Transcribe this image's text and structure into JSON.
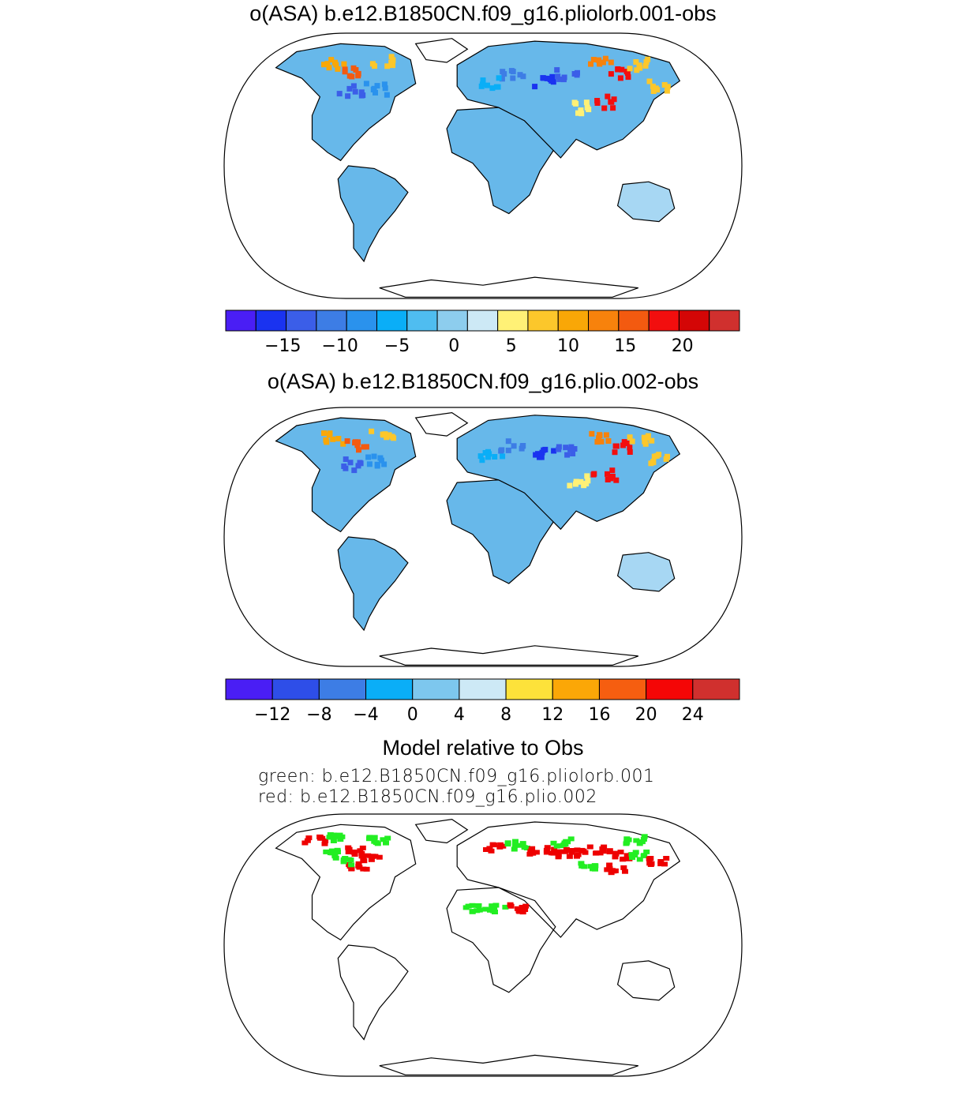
{
  "panels": [
    {
      "title": "o(ASA) b.e12.B1850CN.f09_g16.pliolorb.001-obs",
      "colorbar": {
        "colors": [
          "#4a1ef5",
          "#1a33f0",
          "#3b5ee8",
          "#3d7de5",
          "#2a92ed",
          "#0aaef7",
          "#4fbdf0",
          "#8dcdee",
          "#cde9f6",
          "#fff176",
          "#fcc72b",
          "#f9a707",
          "#f7820c",
          "#f35a10",
          "#f20e0e",
          "#d40606",
          "#d0302e"
        ],
        "tick_labels": [
          "−15",
          "−10",
          "−5",
          "0",
          "5",
          "10",
          "15",
          "20"
        ],
        "tick_values": [
          -15,
          -10,
          -5,
          0,
          5,
          10,
          15,
          20
        ],
        "range": [
          -20,
          25
        ]
      }
    },
    {
      "title": "o(ASA) b.e12.B1850CN.f09_g16.plio.002-obs",
      "colorbar": {
        "colors": [
          "#4a1ef5",
          "#2e4ee8",
          "#3d7de5",
          "#0aaef7",
          "#7dc7ee",
          "#cde9f6",
          "#fde23a",
          "#fba707",
          "#f65e10",
          "#f50606",
          "#d0302e"
        ],
        "tick_labels": [
          "−12",
          "−8",
          "−4",
          "0",
          "4",
          "8",
          "12",
          "16",
          "20",
          "24"
        ],
        "tick_values": [
          -12,
          -8,
          -4,
          0,
          4,
          8,
          12,
          16,
          20,
          24
        ],
        "range": [
          -16,
          28
        ]
      }
    }
  ],
  "comparison": {
    "title": "Model relative to Obs",
    "green_line": "green: b.e12.B1850CN.f09_g16.pliolorb.001",
    "red_line": "red: b.e12.B1850CN.f09_g16.plio.002",
    "green_color": "#22ee22",
    "red_color": "#ee0000"
  },
  "colors": {
    "land_base": "#67b8ea",
    "land_light": "#a7d7f3",
    "coast": "#000000"
  }
}
